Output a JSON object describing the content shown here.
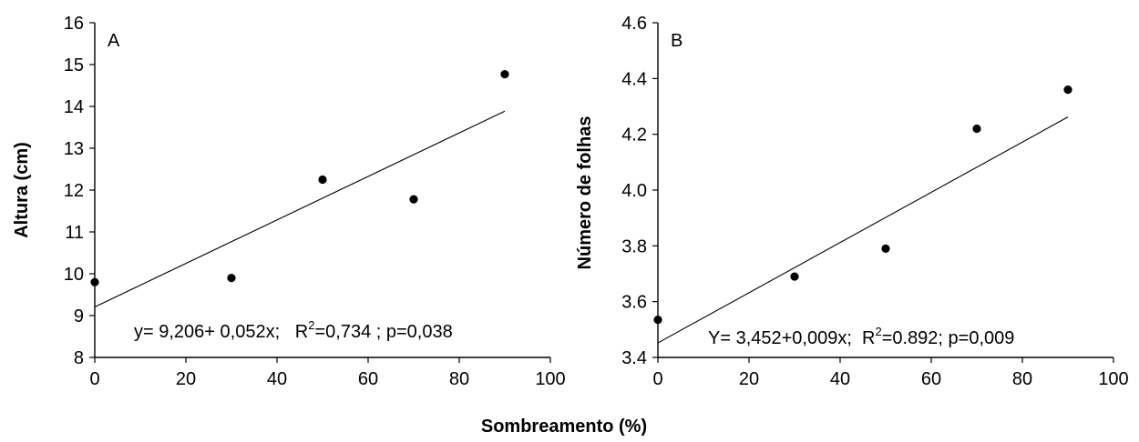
{
  "shared_xlabel": "Sombreamento (%)",
  "chart_data": [
    {
      "type": "scatter",
      "panel_label": "A",
      "xlabel": "",
      "ylabel": "Altura (cm)",
      "xlim": [
        0,
        100
      ],
      "ylim": [
        8,
        16
      ],
      "xticks": [
        0,
        20,
        40,
        60,
        80,
        100
      ],
      "yticks": [
        8,
        9,
        10,
        11,
        12,
        13,
        14,
        15,
        16
      ],
      "x_tick_labels": [
        "0",
        "20",
        "40",
        "60",
        "80",
        "100"
      ],
      "y_tick_labels": [
        "8",
        "9",
        "10",
        "11",
        "12",
        "13",
        "14",
        "15",
        "16"
      ],
      "points": {
        "x": [
          0,
          30,
          50,
          70,
          90
        ],
        "y": [
          9.8,
          9.9,
          12.25,
          11.78,
          14.77
        ]
      },
      "trendline": {
        "intercept": 9.206,
        "slope": 0.052,
        "x_range": [
          0,
          90
        ]
      },
      "equation": {
        "main": "y= 9,206+ 0,052x;   R",
        "sup": "2",
        "rest": "=0,734 ; p=0,038"
      },
      "grid": false,
      "colors": {
        "points": "#000000",
        "line": "#000000"
      }
    },
    {
      "type": "scatter",
      "panel_label": "B",
      "xlabel": "",
      "ylabel": "Número de folhas",
      "xlim": [
        0,
        100
      ],
      "ylim": [
        3.4,
        4.6
      ],
      "xticks": [
        0,
        20,
        40,
        60,
        80,
        100
      ],
      "yticks": [
        3.4,
        3.6,
        3.8,
        4.0,
        4.2,
        4.4,
        4.6
      ],
      "x_tick_labels": [
        "0",
        "20",
        "40",
        "60",
        "80",
        "100"
      ],
      "y_tick_labels": [
        "3.4",
        "3.6",
        "3.8",
        "4.0",
        "4.2",
        "4.4",
        "4.6"
      ],
      "points": {
        "x": [
          0,
          30,
          50,
          70,
          90
        ],
        "y": [
          3.535,
          3.69,
          3.79,
          4.22,
          4.36
        ]
      },
      "trendline": {
        "intercept": 3.452,
        "slope": 0.009,
        "x_range": [
          0,
          90
        ]
      },
      "equation": {
        "main": "Y= 3,452+0,009x;  R",
        "sup": "2",
        "rest": "=0.892; p=0,009"
      },
      "grid": false,
      "colors": {
        "points": "#000000",
        "line": "#000000"
      }
    }
  ]
}
